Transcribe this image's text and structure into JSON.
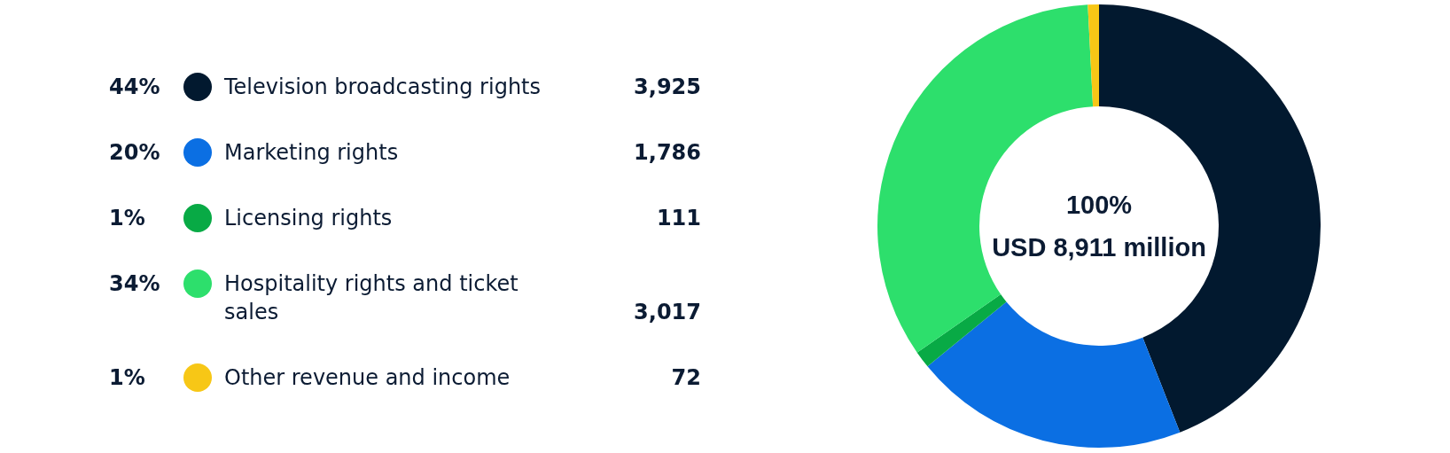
{
  "chart_data": {
    "type": "donut",
    "categories": [
      "Television broadcasting rights",
      "Marketing rights",
      "Licensing rights",
      "Hospitality rights and ticket sales",
      "Other revenue and income"
    ],
    "values": [
      3925,
      1786,
      111,
      3017,
      72
    ],
    "colors": [
      "#02192f",
      "#0b6fe3",
      "#08aa45",
      "#2ddf6c",
      "#f7c716"
    ],
    "value_labels": [
      "3,925",
      "1,786",
      "111",
      "3,017",
      "72"
    ],
    "legend": "left",
    "annotations": [
      "100%",
      "USD 8,911 million",
      {
        "text": "44%",
        "x": "Television broadcasting rights"
      },
      {
        "text": "20%",
        "x": "Marketing rights"
      },
      {
        "text": "1%",
        "x": "Licensing rights"
      },
      {
        "text": "34%",
        "x": "Hospitality rights and ticket sales"
      },
      {
        "text": "1%",
        "x": "Other revenue and income"
      }
    ]
  }
}
